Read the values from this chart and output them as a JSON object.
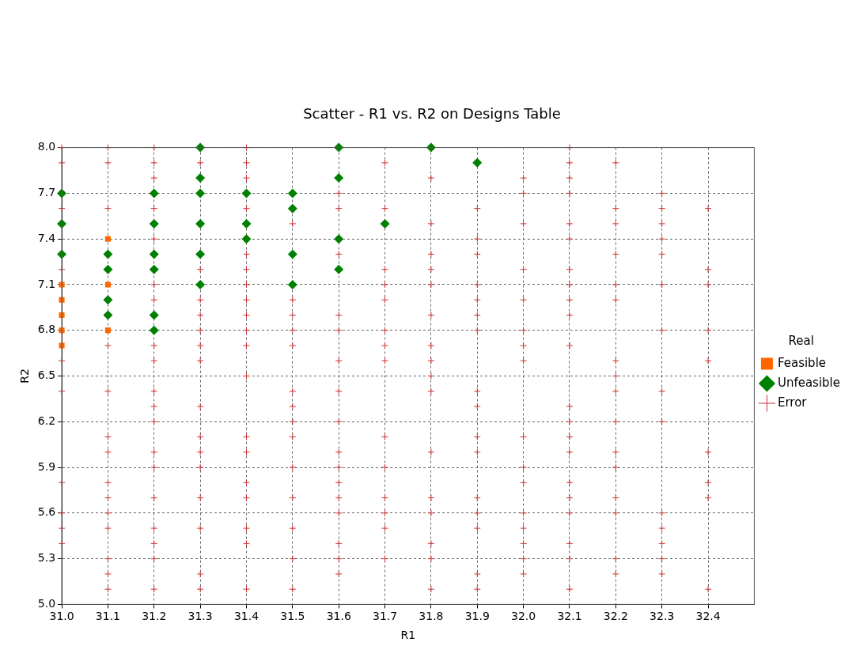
{
  "chart_data": {
    "type": "scatter",
    "title": "Scatter - R1 vs. R2 on Designs Table",
    "xlabel": "R1",
    "ylabel": "R2",
    "legend_title": "Real",
    "legend": "right",
    "grid": true,
    "line_style": "dashed",
    "xlim": [
      31.0,
      32.5
    ],
    "ylim": [
      5.0,
      8.0
    ],
    "xticks": [
      {
        "value": 31.0,
        "label": "31.0"
      },
      {
        "value": 31.1,
        "label": "31.1"
      },
      {
        "value": 31.2,
        "label": "31.2"
      },
      {
        "value": 31.3,
        "label": "31.3"
      },
      {
        "value": 31.4,
        "label": "31.4"
      },
      {
        "value": 31.5,
        "label": "31.5"
      },
      {
        "value": 31.6,
        "label": "31.6"
      },
      {
        "value": 31.7,
        "label": "31.7"
      },
      {
        "value": 31.8,
        "label": "31.8"
      },
      {
        "value": 31.9,
        "label": "31.9"
      },
      {
        "value": 32.0,
        "label": "32.0"
      },
      {
        "value": 32.1,
        "label": "32.1"
      },
      {
        "value": 32.2,
        "label": "32.2"
      },
      {
        "value": 32.3,
        "label": "32.3"
      },
      {
        "value": 32.4,
        "label": "32.4"
      }
    ],
    "yticks": [
      {
        "value": 5.0,
        "label": "5.0"
      },
      {
        "value": 5.3,
        "label": "5.3"
      },
      {
        "value": 5.6,
        "label": "5.6"
      },
      {
        "value": 5.9,
        "label": "5.9"
      },
      {
        "value": 6.2,
        "label": "6.2"
      },
      {
        "value": 6.5,
        "label": "6.5"
      },
      {
        "value": 6.8,
        "label": "6.8"
      },
      {
        "value": 7.1,
        "label": "7.1"
      },
      {
        "value": 7.4,
        "label": "7.4"
      },
      {
        "value": 7.7,
        "label": "7.7"
      },
      {
        "value": 8.0,
        "label": "8.0"
      }
    ],
    "series": [
      {
        "name": "Feasible",
        "color": "#ff6600",
        "marker": "square",
        "x": [
          31.0,
          31.0,
          31.0,
          31.0,
          31.0,
          31.1,
          31.1,
          31.1
        ],
        "values": [
          7.1,
          7.0,
          6.9,
          6.8,
          6.7,
          7.4,
          7.1,
          6.8
        ]
      },
      {
        "name": "Unfeasible",
        "color": "#008000",
        "marker": "diamond",
        "x": [
          31.0,
          31.0,
          31.0,
          31.1,
          31.1,
          31.1,
          31.1,
          31.2,
          31.2,
          31.2,
          31.2,
          31.2,
          31.2,
          31.3,
          31.3,
          31.3,
          31.3,
          31.3,
          31.3,
          31.4,
          31.4,
          31.4,
          31.5,
          31.5,
          31.5,
          31.5,
          31.6,
          31.6,
          31.6,
          31.6,
          31.7,
          31.8,
          31.9
        ],
        "values": [
          7.7,
          7.5,
          7.3,
          7.3,
          7.2,
          7.0,
          6.9,
          7.7,
          7.5,
          7.3,
          7.2,
          6.9,
          6.8,
          8.0,
          7.8,
          7.7,
          7.5,
          7.3,
          7.1,
          7.7,
          7.5,
          7.4,
          7.7,
          7.6,
          7.3,
          7.1,
          8.0,
          7.8,
          7.4,
          7.2,
          7.5,
          8.0,
          7.9
        ]
      },
      {
        "name": "Error",
        "color": "#cc3333",
        "marker": "cross",
        "x": [
          31.0,
          31.0,
          31.0,
          31.0,
          31.0,
          31.0,
          31.0,
          31.0,
          31.0,
          31.0,
          31.1,
          31.1,
          31.1,
          31.1,
          31.1,
          31.1,
          31.1,
          31.1,
          31.1,
          31.1,
          31.1,
          31.1,
          31.1,
          31.1,
          31.2,
          31.2,
          31.2,
          31.2,
          31.2,
          31.2,
          31.2,
          31.2,
          31.2,
          31.2,
          31.2,
          31.2,
          31.2,
          31.2,
          31.2,
          31.2,
          31.2,
          31.2,
          31.2,
          31.3,
          31.3,
          31.3,
          31.3,
          31.3,
          31.3,
          31.3,
          31.3,
          31.3,
          31.3,
          31.3,
          31.3,
          31.3,
          31.3,
          31.3,
          31.4,
          31.4,
          31.4,
          31.4,
          31.4,
          31.4,
          31.4,
          31.4,
          31.4,
          31.4,
          31.4,
          31.4,
          31.4,
          31.4,
          31.4,
          31.4,
          31.4,
          31.4,
          31.4,
          31.5,
          31.5,
          31.5,
          31.5,
          31.5,
          31.5,
          31.5,
          31.5,
          31.5,
          31.5,
          31.5,
          31.5,
          31.5,
          31.5,
          31.6,
          31.6,
          31.6,
          31.6,
          31.6,
          31.6,
          31.6,
          31.6,
          31.6,
          31.6,
          31.6,
          31.6,
          31.6,
          31.6,
          31.6,
          31.6,
          31.7,
          31.7,
          31.7,
          31.7,
          31.7,
          31.7,
          31.7,
          31.7,
          31.7,
          31.7,
          31.7,
          31.7,
          31.7,
          31.7,
          31.8,
          31.8,
          31.8,
          31.8,
          31.8,
          31.8,
          31.8,
          31.8,
          31.8,
          31.8,
          31.8,
          31.8,
          31.8,
          31.8,
          31.8,
          31.8,
          31.9,
          31.9,
          31.9,
          31.9,
          31.9,
          31.9,
          31.9,
          31.9,
          31.9,
          31.9,
          31.9,
          31.9,
          31.9,
          31.9,
          31.9,
          31.9,
          32.0,
          32.0,
          32.0,
          32.0,
          32.0,
          32.0,
          32.0,
          32.0,
          32.0,
          32.0,
          32.0,
          32.0,
          32.0,
          32.0,
          32.0,
          32.0,
          32.1,
          32.1,
          32.1,
          32.1,
          32.1,
          32.1,
          32.1,
          32.1,
          32.1,
          32.1,
          32.1,
          32.1,
          32.1,
          32.1,
          32.1,
          32.1,
          32.1,
          32.1,
          32.1,
          32.1,
          32.1,
          32.2,
          32.2,
          32.2,
          32.2,
          32.2,
          32.2,
          32.2,
          32.2,
          32.2,
          32.2,
          32.2,
          32.2,
          32.2,
          32.2,
          32.2,
          32.2,
          32.3,
          32.3,
          32.3,
          32.3,
          32.3,
          32.3,
          32.3,
          32.3,
          32.3,
          32.3,
          32.3,
          32.3,
          32.3,
          32.3,
          32.4,
          32.4,
          32.4,
          32.4,
          32.4,
          32.4,
          32.4,
          32.4,
          32.4
        ],
        "values": [
          8.0,
          7.9,
          7.6,
          7.2,
          6.6,
          6.4,
          5.8,
          5.6,
          5.5,
          5.4,
          8.0,
          7.9,
          7.6,
          6.7,
          6.4,
          6.1,
          6.0,
          5.8,
          5.7,
          5.6,
          5.5,
          5.3,
          5.2,
          5.1,
          8.0,
          7.9,
          7.8,
          7.6,
          7.4,
          7.1,
          7.0,
          6.7,
          6.6,
          6.4,
          6.3,
          6.2,
          6.0,
          5.9,
          5.7,
          5.5,
          5.4,
          5.3,
          5.1,
          7.9,
          7.2,
          7.0,
          6.9,
          6.8,
          6.7,
          6.6,
          6.3,
          6.1,
          6.0,
          5.9,
          5.7,
          5.5,
          5.2,
          5.1,
          8.0,
          7.9,
          7.8,
          7.6,
          7.3,
          7.2,
          7.1,
          7.0,
          6.9,
          6.8,
          6.7,
          6.5,
          6.1,
          6.0,
          5.8,
          5.7,
          5.5,
          5.4,
          5.1,
          7.5,
          7.0,
          6.9,
          6.8,
          6.7,
          6.4,
          6.3,
          6.2,
          6.1,
          5.9,
          5.7,
          5.5,
          5.3,
          5.1,
          7.7,
          7.6,
          7.3,
          6.9,
          6.8,
          6.6,
          6.4,
          6.2,
          6.0,
          5.9,
          5.8,
          5.7,
          5.6,
          5.4,
          5.3,
          5.2,
          7.9,
          7.6,
          7.2,
          7.1,
          7.0,
          6.8,
          6.7,
          6.6,
          6.1,
          5.9,
          5.7,
          5.6,
          5.5,
          5.3,
          7.8,
          7.5,
          7.3,
          7.2,
          7.1,
          6.9,
          6.7,
          6.6,
          6.5,
          6.4,
          6.0,
          5.7,
          5.6,
          5.4,
          5.3,
          5.1,
          7.6,
          7.4,
          7.3,
          7.1,
          7.0,
          6.9,
          6.8,
          6.4,
          6.3,
          6.1,
          6.0,
          5.7,
          5.6,
          5.5,
          5.2,
          5.1,
          7.8,
          7.7,
          7.5,
          7.2,
          7.0,
          6.8,
          6.7,
          6.6,
          6.1,
          5.9,
          5.8,
          5.6,
          5.5,
          5.4,
          5.3,
          5.2,
          8.0,
          7.9,
          7.8,
          7.7,
          7.5,
          7.4,
          7.2,
          7.1,
          7.0,
          6.9,
          6.7,
          6.3,
          6.2,
          6.1,
          6.0,
          5.8,
          5.7,
          5.6,
          5.4,
          5.3,
          5.1,
          7.9,
          7.6,
          7.5,
          7.3,
          7.1,
          7.0,
          6.6,
          6.5,
          6.4,
          6.2,
          6.0,
          5.9,
          5.7,
          5.6,
          5.3,
          5.2,
          7.7,
          7.6,
          7.5,
          7.4,
          7.3,
          7.1,
          6.8,
          6.4,
          6.2,
          5.6,
          5.5,
          5.4,
          5.3,
          5.2,
          7.6,
          7.2,
          7.1,
          6.8,
          6.6,
          6.0,
          5.8,
          5.7,
          5.1
        ]
      }
    ]
  }
}
